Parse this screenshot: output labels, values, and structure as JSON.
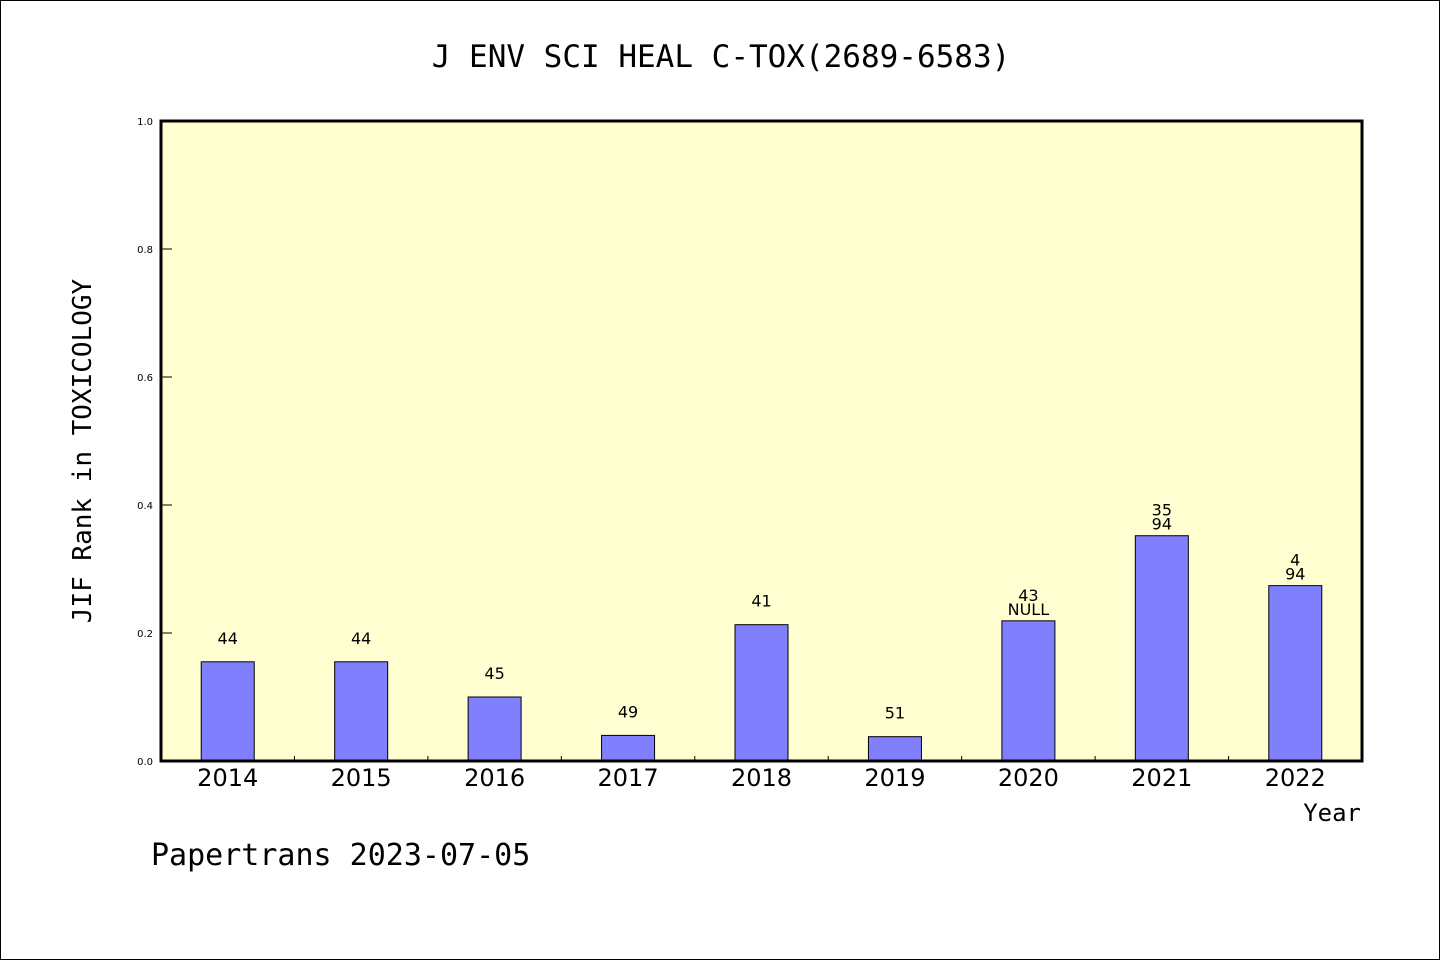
{
  "chart_data": {
    "type": "bar",
    "title": "J ENV SCI HEAL C-TOX(2689-6583)",
    "xlabel": "Year",
    "ylabel": "JIF Rank in TOXICOLOGY",
    "ylim": [
      0,
      1.0
    ],
    "yticks": [
      "0.0",
      "0.2",
      "0.4",
      "0.6",
      "0.8",
      "1.0"
    ],
    "categories": [
      "2014",
      "2015",
      "2016",
      "2017",
      "2018",
      "2019",
      "2020",
      "2021",
      "2022"
    ],
    "values": [
      0.155,
      0.155,
      0.1,
      0.04,
      0.213,
      0.038,
      0.219,
      0.352,
      0.274
    ],
    "labels": [
      [
        "44"
      ],
      [
        "44"
      ],
      [
        "45"
      ],
      [
        "49"
      ],
      [
        "41"
      ],
      [
        "51"
      ],
      [
        "43",
        "NULL"
      ],
      [
        "35",
        "94"
      ],
      [
        "4",
        "94"
      ]
    ],
    "bar_color": "#8080ff",
    "plot_background": "#ffffd2",
    "grid": false,
    "legend": "none"
  },
  "footer": "Papertrans 2023-07-05"
}
